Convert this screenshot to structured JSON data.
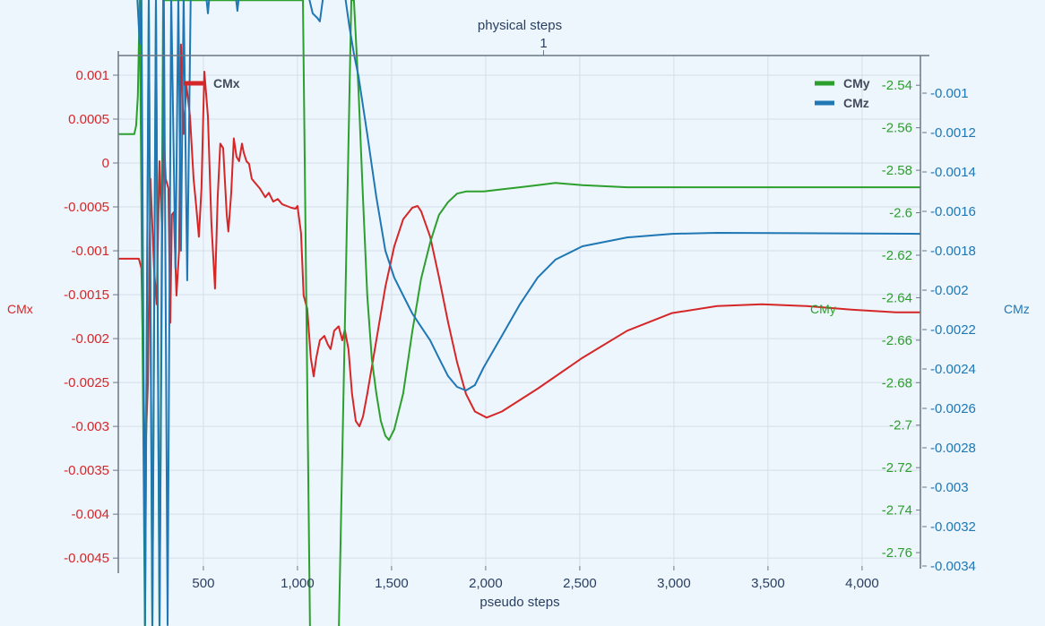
{
  "chart_data": {
    "type": "line",
    "xlabel": "pseudo steps",
    "x2label": "physical steps",
    "x2_ticks": [
      {
        "value": 1,
        "label": "1"
      }
    ],
    "xlim": [
      48,
      4310
    ],
    "x_ticks": [
      500,
      1000,
      1500,
      2000,
      2500,
      3000,
      3500,
      4000
    ],
    "x_tick_labels": [
      "500",
      "1,000",
      "1,500",
      "2,000",
      "2,500",
      "3,000",
      "3,500",
      "4,000"
    ],
    "grid": true,
    "legend": "inside, top-left for CMx and top-right for CMy/CMz",
    "axes": {
      "CMx": {
        "label": "CMx",
        "side": "left",
        "ylim": [
          -0.00459,
          0.001224
        ],
        "ticks": [
          0.001,
          0.0005,
          0,
          -0.0005,
          -0.001,
          -0.0015,
          -0.002,
          -0.0025,
          -0.003,
          -0.0035,
          -0.004,
          -0.0045
        ],
        "tick_labels": [
          "0.001",
          "0.0005",
          "0",
          "-0.0005",
          "-0.001",
          "-0.0015",
          "-0.002",
          "-0.0025",
          "-0.003",
          "-0.0035",
          "-0.004",
          "-0.0045"
        ],
        "color": "#d62728"
      },
      "CMy": {
        "label": "CMy",
        "side": "right-inner",
        "ylim": [
          -2.7663,
          -2.526
        ],
        "ticks": [
          -2.54,
          -2.56,
          -2.58,
          -2.6,
          -2.62,
          -2.64,
          -2.66,
          -2.68,
          -2.7,
          -2.72,
          -2.74,
          -2.76
        ],
        "tick_labels": [
          "-2.54",
          "-2.56",
          "-2.58",
          "-2.6",
          "-2.62",
          "-2.64",
          "-2.66",
          "-2.68",
          "-2.7",
          "-2.72",
          "-2.74",
          "-2.76"
        ],
        "color": "#2ca02c"
      },
      "CMz": {
        "label": "CMz",
        "side": "right",
        "ylim": [
          -0.0034,
          -0.000809
        ],
        "ticks": [
          -0.001,
          -0.0012,
          -0.0014,
          -0.0016,
          -0.0018,
          -0.002,
          -0.0022,
          -0.0024,
          -0.0026,
          -0.0028,
          -0.003,
          -0.0032,
          -0.0034
        ],
        "tick_labels": [
          "-0.001",
          "-0.0012",
          "-0.0014",
          "-0.0016",
          "-0.0018",
          "-0.002",
          "-0.0022",
          "-0.0024",
          "-0.0026",
          "-0.0028",
          "-0.003",
          "-0.0032",
          "-0.0034"
        ],
        "color": "#1f77b4"
      }
    },
    "series": [
      {
        "name": "CMx",
        "axis": "CMx",
        "color": "#d62728",
        "x": [
          48,
          157,
          171,
          190,
          205,
          219,
          238,
          252,
          267,
          281,
          290,
          300,
          314,
          324,
          333,
          343,
          357,
          371,
          381,
          395,
          410,
          429,
          448,
          462,
          476,
          490,
          505,
          524,
          543,
          562,
          576,
          590,
          605,
          624,
          633,
          648,
          662,
          676,
          690,
          705,
          714,
          729,
          743,
          757,
          776,
          800,
          829,
          848,
          871,
          895,
          919,
          943,
          967,
          990,
          1000,
          1019,
          1033,
          1052,
          1071,
          1086,
          1100,
          1119,
          1143,
          1162,
          1176,
          1195,
          1219,
          1238,
          1252,
          1271,
          1290,
          1310,
          1329,
          1348,
          1371,
          1419,
          1467,
          1514,
          1562,
          1610,
          1638,
          1657,
          1705,
          1752,
          1800,
          1848,
          1895,
          1943,
          2005,
          2086,
          2276,
          2514,
          2752,
          2990,
          3229,
          3467,
          3705,
          3943,
          4181,
          4310
        ],
        "y": [
          -0.00109,
          -0.00109,
          -0.0012,
          -0.00343,
          -0.00253,
          -0.00018,
          -0.00121,
          -0.00161,
          2e-05,
          -0.0008,
          0.00033,
          -0.00018,
          -0.00029,
          -0.00182,
          -0.00059,
          -0.00056,
          -0.00151,
          -0.001,
          0.00135,
          0.00033,
          0.00089,
          0.00053,
          -0.00018,
          -0.00049,
          -0.00084,
          -0.00029,
          0.00104,
          0.00053,
          -0.00069,
          -0.00143,
          -0.00039,
          0.00022,
          0.00017,
          -0.00059,
          -0.00078,
          -0.00034,
          0.00028,
          7e-05,
          2e-05,
          0.00022,
          0.00012,
          2e-05,
          -1e-05,
          -0.00018,
          -0.00023,
          -0.00029,
          -0.00039,
          -0.00034,
          -0.00044,
          -0.00041,
          -0.00047,
          -0.00049,
          -0.00051,
          -0.00052,
          -0.00049,
          -0.0008,
          -0.00151,
          -0.00166,
          -0.00222,
          -0.00243,
          -0.00222,
          -0.00202,
          -0.00197,
          -0.00207,
          -0.00212,
          -0.00191,
          -0.00186,
          -0.00202,
          -0.0019,
          -0.00212,
          -0.00263,
          -0.00294,
          -0.003,
          -0.00289,
          -0.00263,
          -0.00202,
          -0.00141,
          -0.00095,
          -0.00064,
          -0.00051,
          -0.00049,
          -0.00055,
          -0.00084,
          -0.0013,
          -0.00181,
          -0.00227,
          -0.00263,
          -0.00283,
          -0.0029,
          -0.00283,
          -0.00257,
          -0.00222,
          -0.00191,
          -0.00171,
          -0.00163,
          -0.00161,
          -0.00163,
          -0.00167,
          -0.0017,
          -0.0017
        ]
      },
      {
        "name": "CMy",
        "axis": "CMy",
        "color": "#2ca02c",
        "x": [
          48,
          133,
          143,
          152,
          162,
          190,
          210,
          229,
          248,
          267,
          286,
          1029,
          1067,
          1219,
          1286,
          1300,
          1324,
          1348,
          1371,
          1395,
          1419,
          1443,
          1467,
          1486,
          1514,
          1562,
          1610,
          1657,
          1705,
          1752,
          1800,
          1848,
          1895,
          1990,
          2086,
          2181,
          2276,
          2371,
          2514,
          2752,
          4310
        ],
        "y": [
          -2.563,
          -2.563,
          -2.559,
          -2.545,
          -2.5,
          -2.8,
          -2.5,
          -2.8,
          -2.5,
          -2.8,
          -2.5,
          -2.5,
          -2.8,
          -2.8,
          -2.5,
          -2.5,
          -2.542,
          -2.593,
          -2.639,
          -2.669,
          -2.685,
          -2.698,
          -2.705,
          -2.707,
          -2.702,
          -2.685,
          -2.656,
          -2.631,
          -2.614,
          -2.601,
          -2.595,
          -2.591,
          -2.59,
          -2.59,
          -2.589,
          -2.588,
          -2.587,
          -2.586,
          -2.587,
          -2.588,
          -2.588
        ]
      },
      {
        "name": "CMz",
        "axis": "CMz",
        "color": "#1f77b4",
        "x": [
          148,
          162,
          171,
          190,
          210,
          229,
          248,
          267,
          290,
          310,
          329,
          352,
          367,
          381,
          395,
          414,
          433,
          514,
          524,
          533,
          671,
          681,
          690,
          1057,
          1081,
          1105,
          1119,
          1138,
          1252,
          1276,
          1300,
          1324,
          1371,
          1419,
          1467,
          1514,
          1562,
          1610,
          1657,
          1705,
          1752,
          1800,
          1848,
          1895,
          1943,
          1990,
          2086,
          2181,
          2276,
          2371,
          2514,
          2752,
          2990,
          3229,
          4310
        ],
        "y": [
          -0.0005,
          -0.00075,
          -0.0005,
          -0.0037,
          -0.0005,
          -0.0037,
          -0.0005,
          -0.0037,
          -0.0005,
          -0.0037,
          -0.0005,
          -0.00189,
          -0.0005,
          -0.0018,
          -0.0005,
          -0.00195,
          -0.0005,
          -0.0005,
          -0.000595,
          -0.0005,
          -0.0005,
          -0.000582,
          -0.0005,
          -0.0005,
          -0.000595,
          -0.000618,
          -0.000636,
          -0.0005,
          -0.0005,
          -0.000664,
          -0.0008,
          -0.000914,
          -0.001209,
          -0.001527,
          -0.0018,
          -0.001936,
          -0.002027,
          -0.002118,
          -0.002186,
          -0.002255,
          -0.002345,
          -0.002436,
          -0.002491,
          -0.002509,
          -0.002482,
          -0.002391,
          -0.002232,
          -0.002073,
          -0.001936,
          -0.001845,
          -0.001777,
          -0.001732,
          -0.001714,
          -0.001709,
          -0.001714
        ]
      }
    ]
  }
}
